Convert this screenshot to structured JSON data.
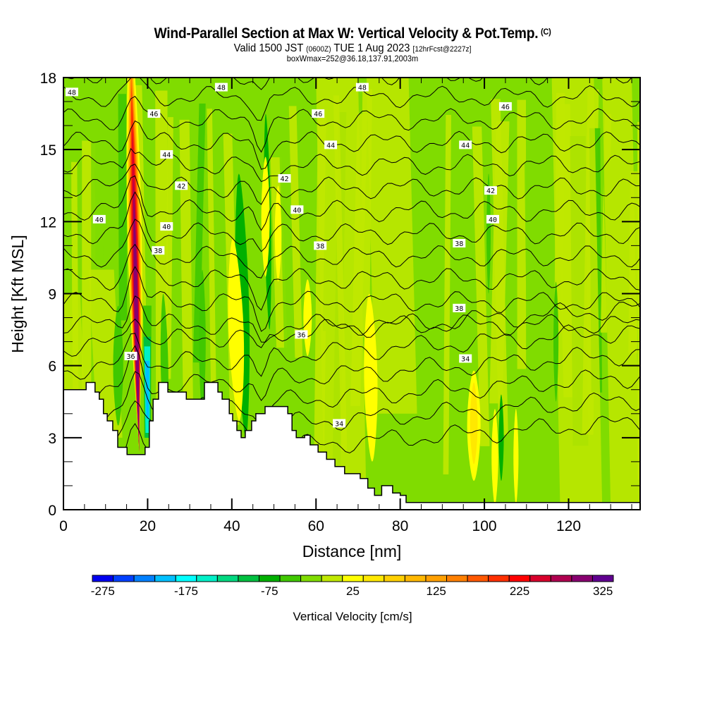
{
  "header": {
    "title": "Wind-Parallel Section at Max W: Vertical Velocity & Pot.Temp.",
    "copyright": "(C)",
    "valid_main": "Valid 1500 JST",
    "valid_utc": "(0600Z)",
    "valid_date": "TUE 1 Aug 2023",
    "forecast": "[12hrFcst@2227z]",
    "box_info": "boxWmax=252@36.18,137.91,2003m"
  },
  "chart_data": {
    "type": "heatmap",
    "title": "Wind-Parallel Section at Max W: Vertical Velocity & Pot.Temp.",
    "xlabel": "Distance [nm]",
    "ylabel": "Height [Kft MSL]",
    "xlim": [
      0,
      137
    ],
    "ylim": [
      0,
      18
    ],
    "x_ticks": [
      0,
      20,
      40,
      60,
      80,
      100,
      120
    ],
    "y_ticks": [
      0,
      3,
      6,
      9,
      12,
      15,
      18
    ],
    "x_minor_step": 5,
    "y_minor_step": 1,
    "colorbar": {
      "title": "Vertical Velocity [cm/s]",
      "tick_labels": [
        -275,
        -175,
        -75,
        25,
        125,
        225,
        325
      ],
      "levels": [
        -275,
        -250,
        -225,
        -200,
        -175,
        -150,
        -125,
        -100,
        -75,
        -50,
        -25,
        0,
        25,
        50,
        75,
        100,
        125,
        150,
        175,
        200,
        225,
        250,
        275,
        300,
        325,
        350
      ],
      "colors": [
        "#0000f0",
        "#0040ff",
        "#0080ff",
        "#00c0ff",
        "#00ffff",
        "#00f0c8",
        "#00d880",
        "#00c040",
        "#00b000",
        "#40c800",
        "#80dc00",
        "#c0e800",
        "#ffff00",
        "#ffe800",
        "#ffd000",
        "#ffb800",
        "#ffa000",
        "#ff8000",
        "#ff5800",
        "#ff3000",
        "#ff0000",
        "#d8002c",
        "#b00050",
        "#880070",
        "#600090"
      ]
    },
    "velocity_features": [
      {
        "name": "main-updraft",
        "x": [
          15,
          19
        ],
        "y": [
          2.5,
          17.5
        ],
        "peak": 325
      },
      {
        "name": "downdraft",
        "x": [
          19.5,
          21
        ],
        "y": [
          3,
          8
        ],
        "peak": -200
      },
      {
        "name": "updraft-40",
        "x": [
          40,
          44
        ],
        "y": [
          4,
          12
        ],
        "peak": 50
      },
      {
        "name": "updraft-49",
        "x": [
          47,
          51
        ],
        "y": [
          9,
          15
        ],
        "peak": 75
      },
      {
        "name": "updraft-97",
        "x": [
          96,
          99
        ],
        "y": [
          1.5,
          5.5
        ],
        "peak": 100
      }
    ],
    "contour_labels": [
      {
        "value": "48",
        "x": 2,
        "y": 17.4
      },
      {
        "value": "48",
        "x": 37.5,
        "y": 17.6
      },
      {
        "value": "48",
        "x": 71,
        "y": 17.6
      },
      {
        "value": "46",
        "x": 21.5,
        "y": 16.5
      },
      {
        "value": "46",
        "x": 60.5,
        "y": 16.5
      },
      {
        "value": "46",
        "x": 105,
        "y": 16.8
      },
      {
        "value": "44",
        "x": 24.5,
        "y": 14.8
      },
      {
        "value": "44",
        "x": 63.5,
        "y": 15.2
      },
      {
        "value": "44",
        "x": 95.5,
        "y": 15.2
      },
      {
        "value": "42",
        "x": 28,
        "y": 13.5
      },
      {
        "value": "42",
        "x": 52.5,
        "y": 13.8
      },
      {
        "value": "42",
        "x": 101.5,
        "y": 13.3
      },
      {
        "value": "40",
        "x": 8.5,
        "y": 12.1
      },
      {
        "value": "40",
        "x": 24.5,
        "y": 11.8
      },
      {
        "value": "40",
        "x": 55.5,
        "y": 12.5
      },
      {
        "value": "40",
        "x": 102,
        "y": 12.1
      },
      {
        "value": "38",
        "x": 22.5,
        "y": 10.8
      },
      {
        "value": "38",
        "x": 61,
        "y": 11
      },
      {
        "value": "38",
        "x": 94,
        "y": 11.1
      },
      {
        "value": "38",
        "x": 94,
        "y": 8.4
      },
      {
        "value": "36",
        "x": 16,
        "y": 6.4
      },
      {
        "value": "36",
        "x": 56.5,
        "y": 7.3
      },
      {
        "value": "34",
        "x": 65.5,
        "y": 3.6
      },
      {
        "value": "34",
        "x": 95.5,
        "y": 6.3
      }
    ],
    "terrain": [
      [
        0,
        5.0
      ],
      [
        5.4,
        5.3
      ],
      [
        7.5,
        4.9
      ],
      [
        8.5,
        4.6
      ],
      [
        9.5,
        4.0
      ],
      [
        10.4,
        3.7
      ],
      [
        11.7,
        3.3
      ],
      [
        12.9,
        2.6
      ],
      [
        15.1,
        2.3
      ],
      [
        19.4,
        2.6
      ],
      [
        20.4,
        3.7
      ],
      [
        21.3,
        4.6
      ],
      [
        22.6,
        5.3
      ],
      [
        24.8,
        4.9
      ],
      [
        29.2,
        4.6
      ],
      [
        33.5,
        5.3
      ],
      [
        36.7,
        4.9
      ],
      [
        37.7,
        4.6
      ],
      [
        39.4,
        4.0
      ],
      [
        40.2,
        3.7
      ],
      [
        41.2,
        3.3
      ],
      [
        42.2,
        3.0
      ],
      [
        43.2,
        3.3
      ],
      [
        44.7,
        3.7
      ],
      [
        45.7,
        4.0
      ],
      [
        47.9,
        4.3
      ],
      [
        53.3,
        4.0
      ],
      [
        54.3,
        3.3
      ],
      [
        55.3,
        3.0
      ],
      [
        57.3,
        3.1
      ],
      [
        58.6,
        2.7
      ],
      [
        60.5,
        2.4
      ],
      [
        62.5,
        2.1
      ],
      [
        64.5,
        1.8
      ],
      [
        66.8,
        1.5
      ],
      [
        70.5,
        1.3
      ],
      [
        72.3,
        0.9
      ],
      [
        73.9,
        0.6
      ],
      [
        75.6,
        1.0
      ],
      [
        78.2,
        0.7
      ],
      [
        80.0,
        0.6
      ],
      [
        81.4,
        0.3
      ],
      [
        83.0,
        0.3
      ],
      [
        137,
        0.3
      ]
    ]
  }
}
